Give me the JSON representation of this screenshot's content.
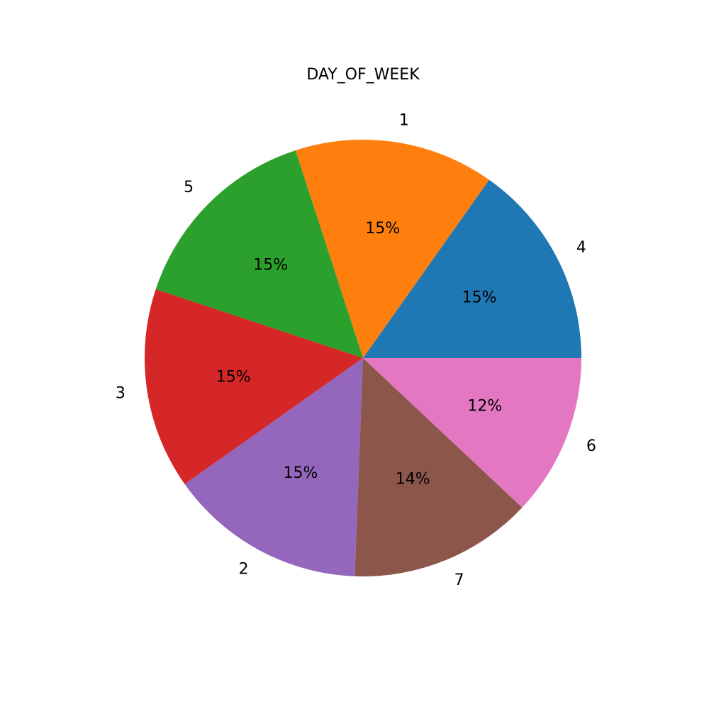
{
  "chart_data": {
    "type": "pie",
    "title": "DAY_OF_WEEK",
    "slices": [
      {
        "label": "4",
        "value": 15.2,
        "pct_label": "15%",
        "color": "#1f77b4"
      },
      {
        "label": "1",
        "value": 14.8,
        "pct_label": "15%",
        "color": "#ff7f0e"
      },
      {
        "label": "5",
        "value": 14.9,
        "pct_label": "15%",
        "color": "#2ca02c"
      },
      {
        "label": "3",
        "value": 14.9,
        "pct_label": "15%",
        "color": "#d62728"
      },
      {
        "label": "2",
        "value": 14.6,
        "pct_label": "15%",
        "color": "#9467bd"
      },
      {
        "label": "7",
        "value": 13.6,
        "pct_label": "14%",
        "color": "#8c564b"
      },
      {
        "label": "6",
        "value": 12.0,
        "pct_label": "12%",
        "color": "#e377c2"
      }
    ]
  }
}
